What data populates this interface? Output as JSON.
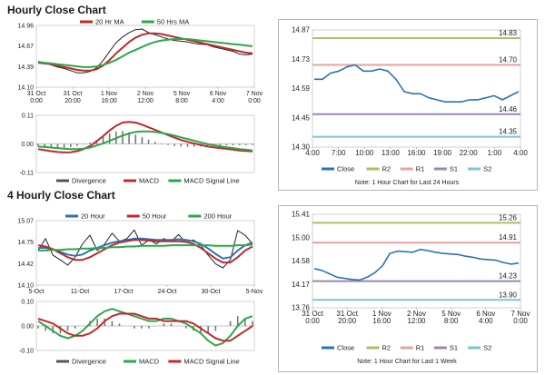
{
  "section1": {
    "title": "Hourly Close Chart"
  },
  "section2": {
    "title": "4 Hourly Close Chart"
  },
  "chart_data": [
    {
      "id": "hourly_price",
      "type": "line",
      "legend": [
        "20 Hr MA",
        "50 Hrs MA"
      ],
      "legend_colors": [
        "#c0282d",
        "#2aa84a"
      ],
      "ylim": [
        14.1,
        14.96
      ],
      "yticks": [
        "14.96",
        "14.67",
        "14.39",
        "14.10"
      ],
      "xticks": [
        "31 Oct\n0:00",
        "31 Oct\n20:00",
        "1 Nov\n16:00",
        "2 Nov\n12:00",
        "5 Nov\n8:00",
        "6 Nov\n4:00",
        "7 Nov\n0:00"
      ],
      "series": [
        {
          "name": "Close",
          "color": "#222222",
          "values": [
            14.46,
            14.44,
            14.41,
            14.38,
            14.36,
            14.33,
            14.3,
            14.3,
            14.32,
            14.37,
            14.47,
            14.6,
            14.72,
            14.8,
            14.86,
            14.9,
            14.91,
            14.86,
            14.83,
            14.8,
            14.77,
            14.75,
            14.74,
            14.73,
            14.71,
            14.7,
            14.69,
            14.66,
            14.64,
            14.62,
            14.6,
            14.56,
            14.55,
            14.56
          ]
        },
        {
          "name": "20 Hr MA",
          "color": "#c0282d",
          "values": [
            14.44,
            14.43,
            14.42,
            14.4,
            14.38,
            14.36,
            14.34,
            14.33,
            14.33,
            14.35,
            14.4,
            14.48,
            14.57,
            14.65,
            14.73,
            14.79,
            14.83,
            14.85,
            14.85,
            14.84,
            14.82,
            14.8,
            14.78,
            14.76,
            14.74,
            14.72,
            14.7,
            14.68,
            14.66,
            14.64,
            14.62,
            14.6,
            14.58,
            14.57
          ]
        },
        {
          "name": "50 Hrs MA",
          "color": "#2aa84a",
          "values": [
            14.45,
            14.44,
            14.43,
            14.42,
            14.41,
            14.4,
            14.39,
            14.38,
            14.38,
            14.39,
            14.41,
            14.44,
            14.48,
            14.53,
            14.58,
            14.62,
            14.66,
            14.7,
            14.73,
            14.75,
            14.76,
            14.77,
            14.77,
            14.77,
            14.76,
            14.75,
            14.74,
            14.73,
            14.72,
            14.71,
            14.7,
            14.69,
            14.68,
            14.67
          ]
        }
      ]
    },
    {
      "id": "hourly_macd",
      "type": "bar",
      "legend": [
        "Divergence",
        "MACD",
        "MACD Signal Line"
      ],
      "legend_colors": [
        "#555555",
        "#c0282d",
        "#2aa84a"
      ],
      "ylim": [
        -0.11,
        0.11
      ],
      "yticks": [
        "0.11",
        "0.00",
        "-0.11"
      ],
      "series": [
        {
          "name": "Divergence",
          "color": "#777777",
          "values": [
            -0.01,
            -0.012,
            -0.014,
            -0.015,
            -0.015,
            -0.012,
            -0.008,
            -0.002,
            0.006,
            0.016,
            0.028,
            0.04,
            0.048,
            0.05,
            0.045,
            0.036,
            0.026,
            0.016,
            0.008,
            0.002,
            -0.004,
            -0.008,
            -0.01,
            -0.011,
            -0.011,
            -0.01,
            -0.009,
            -0.008,
            -0.007,
            -0.006,
            -0.006,
            -0.005,
            -0.005,
            -0.004
          ]
        },
        {
          "name": "MACD",
          "color": "#c0282d",
          "values": [
            -0.02,
            -0.024,
            -0.028,
            -0.031,
            -0.033,
            -0.032,
            -0.028,
            -0.02,
            -0.008,
            0.01,
            0.03,
            0.052,
            0.07,
            0.082,
            0.085,
            0.082,
            0.074,
            0.064,
            0.054,
            0.044,
            0.034,
            0.024,
            0.015,
            0.008,
            0.002,
            -0.004,
            -0.009,
            -0.013,
            -0.016,
            -0.019,
            -0.022,
            -0.025,
            -0.027,
            -0.029
          ]
        },
        {
          "name": "MACD Signal Line",
          "color": "#2aa84a",
          "values": [
            -0.01,
            -0.012,
            -0.014,
            -0.016,
            -0.018,
            -0.02,
            -0.02,
            -0.018,
            -0.014,
            -0.006,
            0.002,
            0.012,
            0.022,
            0.032,
            0.04,
            0.046,
            0.048,
            0.048,
            0.046,
            0.042,
            0.038,
            0.032,
            0.025,
            0.019,
            0.013,
            0.006,
            0.0,
            -0.005,
            -0.009,
            -0.013,
            -0.016,
            -0.02,
            -0.022,
            -0.025
          ]
        }
      ]
    },
    {
      "id": "hourly_24h",
      "type": "line",
      "ylim": [
        14.3,
        14.87
      ],
      "yticks": [
        "14.87",
        "14.73",
        "14.59",
        "14.45",
        "14.30"
      ],
      "xticks": [
        "4:00",
        "7:00",
        "10:00",
        "13:00",
        "16:00",
        "19:00",
        "22:00",
        "1:00",
        "4:00"
      ],
      "levels": [
        {
          "name": "R2",
          "value": 14.83,
          "label": "14.83",
          "color": "#a5c26b"
        },
        {
          "name": "R1",
          "value": 14.7,
          "label": "14.70",
          "color": "#e8a0a0"
        },
        {
          "name": "S1",
          "value": 14.46,
          "label": "14.46",
          "color": "#9b87b7"
        },
        {
          "name": "S2",
          "value": 14.35,
          "label": "14.35",
          "color": "#7cc4d6"
        }
      ],
      "series": [
        {
          "name": "Close",
          "color": "#2d72b0",
          "values": [
            14.63,
            14.63,
            14.66,
            14.67,
            14.69,
            14.7,
            14.67,
            14.67,
            14.68,
            14.67,
            14.63,
            14.57,
            14.56,
            14.56,
            14.54,
            14.53,
            14.52,
            14.52,
            14.52,
            14.53,
            14.53,
            14.54,
            14.55,
            14.53,
            14.55,
            14.57
          ]
        }
      ],
      "legend": [
        "Close",
        "R2",
        "R1",
        "S1",
        "S2"
      ],
      "legend_colors": [
        "#2d72b0",
        "#a5c26b",
        "#e8a0a0",
        "#9b87b7",
        "#7cc4d6"
      ],
      "note": "Note: 1 Hour Chart for Last 24 Hours"
    },
    {
      "id": "four_hourly_price",
      "type": "line",
      "legend": [
        "20 Hour",
        "50 Hour",
        "200 Hour"
      ],
      "legend_colors": [
        "#2d72b0",
        "#c0282d",
        "#2aa84a"
      ],
      "ylim": [
        14.1,
        15.07
      ],
      "yticks": [
        "15.07",
        "14.75",
        "14.42",
        "14.10"
      ],
      "xticks": [
        "5-Oct",
        "11-Oct",
        "17-Oct",
        "24-Oct",
        "30-Oct",
        "5-Nov"
      ],
      "series": [
        {
          "name": "Close",
          "color": "#222222",
          "values": [
            14.62,
            14.8,
            14.55,
            14.48,
            14.4,
            14.52,
            14.72,
            14.85,
            14.62,
            14.72,
            14.88,
            14.76,
            14.8,
            14.93,
            14.7,
            14.78,
            14.72,
            14.8,
            14.76,
            14.86,
            14.74,
            14.78,
            14.7,
            14.55,
            14.42,
            14.36,
            14.48,
            14.92,
            14.85,
            14.72
          ]
        },
        {
          "name": "20 Hour",
          "color": "#2d72b0",
          "values": [
            14.66,
            14.66,
            14.64,
            14.6,
            14.56,
            14.54,
            14.56,
            14.62,
            14.66,
            14.7,
            14.74,
            14.76,
            14.78,
            14.8,
            14.8,
            14.79,
            14.78,
            14.78,
            14.78,
            14.79,
            14.78,
            14.76,
            14.72,
            14.65,
            14.57,
            14.5,
            14.52,
            14.62,
            14.7,
            14.74
          ]
        },
        {
          "name": "50 Hour",
          "color": "#c0282d",
          "values": [
            14.7,
            14.68,
            14.64,
            14.58,
            14.52,
            14.48,
            14.48,
            14.52,
            14.58,
            14.64,
            14.7,
            14.74,
            14.76,
            14.78,
            14.78,
            14.77,
            14.76,
            14.76,
            14.76,
            14.76,
            14.75,
            14.72,
            14.66,
            14.58,
            14.5,
            14.44,
            14.44,
            14.52,
            14.62,
            14.68
          ]
        },
        {
          "name": "200 Hour",
          "color": "#2aa84a",
          "values": [
            14.62,
            14.62,
            14.63,
            14.63,
            14.64,
            14.64,
            14.65,
            14.65,
            14.66,
            14.66,
            14.67,
            14.67,
            14.68,
            14.68,
            14.69,
            14.69,
            14.69,
            14.69,
            14.7,
            14.7,
            14.7,
            14.7,
            14.7,
            14.7,
            14.69,
            14.69,
            14.69,
            14.7,
            14.7,
            14.71
          ]
        }
      ]
    },
    {
      "id": "four_hourly_macd",
      "type": "bar",
      "legend": [
        "Divergence",
        "MACD",
        "MACD Signal Line"
      ],
      "legend_colors": [
        "#555555",
        "#2aa84a",
        "#c0282d"
      ],
      "ylim": [
        -0.1,
        0.1
      ],
      "yticks": [
        "0.10",
        "0.00",
        "-0.10"
      ],
      "series": [
        {
          "name": "Divergence",
          "color": "#777777",
          "values": [
            -0.01,
            -0.02,
            -0.03,
            -0.03,
            -0.02,
            -0.01,
            0.0,
            0.02,
            0.03,
            0.03,
            0.02,
            0.01,
            0.0,
            -0.01,
            -0.01,
            -0.01,
            0.0,
            0.01,
            0.01,
            0.0,
            -0.01,
            -0.02,
            -0.03,
            -0.03,
            -0.02,
            0.0,
            0.02,
            0.04,
            0.03,
            0.02
          ]
        },
        {
          "name": "MACD",
          "color": "#2aa84a",
          "values": [
            0.02,
            0.0,
            -0.02,
            -0.04,
            -0.05,
            -0.04,
            -0.02,
            0.01,
            0.04,
            0.06,
            0.07,
            0.06,
            0.05,
            0.04,
            0.03,
            0.02,
            0.02,
            0.03,
            0.03,
            0.02,
            0.01,
            -0.01,
            -0.03,
            -0.06,
            -0.08,
            -0.07,
            -0.04,
            0.0,
            0.03,
            0.04
          ]
        },
        {
          "name": "MACD Signal Line",
          "color": "#c0282d",
          "values": [
            0.03,
            0.02,
            0.01,
            -0.01,
            -0.03,
            -0.04,
            -0.04,
            -0.03,
            -0.01,
            0.02,
            0.04,
            0.05,
            0.05,
            0.05,
            0.04,
            0.03,
            0.03,
            0.02,
            0.02,
            0.02,
            0.02,
            0.01,
            -0.01,
            -0.03,
            -0.05,
            -0.06,
            -0.06,
            -0.04,
            -0.02,
            0.0
          ]
        }
      ]
    },
    {
      "id": "four_hourly_week",
      "type": "line",
      "ylim": [
        13.76,
        15.41
      ],
      "yticks": [
        "15.41",
        "15.00",
        "14.58",
        "14.17",
        "13.76"
      ],
      "xticks": [
        "31 Oct\n0:00",
        "31 Oct\n20:00",
        "1 Nov\n16:00",
        "2 Nov\n12:00",
        "5 Nov\n8:00",
        "6 Nov\n4:00",
        "7 Nov\n0:00"
      ],
      "levels": [
        {
          "name": "R2",
          "value": 15.26,
          "label": "15.26",
          "color": "#a5c26b"
        },
        {
          "name": "R1",
          "value": 14.91,
          "label": "14.91",
          "color": "#e8a0a0"
        },
        {
          "name": "S1",
          "value": 14.23,
          "label": "14.23",
          "color": "#9b87b7"
        },
        {
          "name": "S2",
          "value": 13.9,
          "label": "13.90",
          "color": "#7cc4d6"
        }
      ],
      "series": [
        {
          "name": "Close",
          "color": "#2d72b0",
          "values": [
            14.45,
            14.42,
            14.36,
            14.3,
            14.28,
            14.26,
            14.25,
            14.3,
            14.38,
            14.5,
            14.72,
            14.76,
            14.75,
            14.74,
            14.79,
            14.77,
            14.74,
            14.72,
            14.71,
            14.7,
            14.67,
            14.65,
            14.62,
            14.61,
            14.6,
            14.56,
            14.53,
            14.55
          ]
        }
      ],
      "legend": [
        "Close",
        "R2",
        "R1",
        "S1",
        "S2"
      ],
      "legend_colors": [
        "#2d72b0",
        "#a5c26b",
        "#e8a0a0",
        "#9b87b7",
        "#7cc4d6"
      ],
      "note": "Note: 1 Hour Chart for Last 1 Week"
    }
  ]
}
